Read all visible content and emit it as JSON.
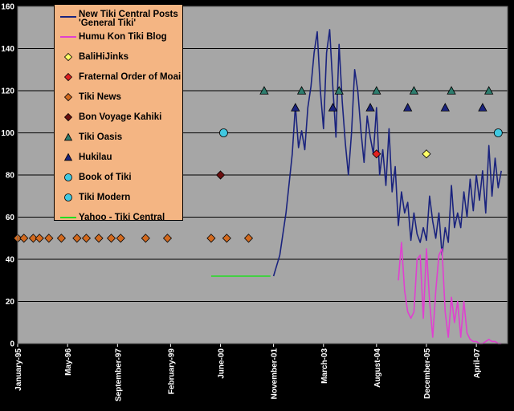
{
  "chart_data": {
    "type": "line",
    "title": "",
    "xlabel": "",
    "ylabel": "",
    "x_range": [
      "1995-01",
      "2008-02"
    ],
    "ylim": [
      0,
      160
    ],
    "yticks": [
      0,
      20,
      40,
      60,
      80,
      100,
      120,
      140,
      160
    ],
    "grid": true,
    "background": "#a6a6a6",
    "legend_position": "top-left",
    "xtick_labels": [
      {
        "date": "1995-01",
        "label": "January-95"
      },
      {
        "date": "1996-05",
        "label": "May-96"
      },
      {
        "date": "1997-09",
        "label": "September-97"
      },
      {
        "date": "1999-02",
        "label": "February-99"
      },
      {
        "date": "2000-06",
        "label": "June-00"
      },
      {
        "date": "2001-11",
        "label": "November-01"
      },
      {
        "date": "2003-03",
        "label": "March-03"
      },
      {
        "date": "2004-08",
        "label": "August-04"
      },
      {
        "date": "2005-12",
        "label": "December-05"
      },
      {
        "date": "2007-04",
        "label": "April-07"
      }
    ],
    "series": [
      {
        "name": "New Tiki Central Posts 'General Tiki'",
        "kind": "line",
        "color": "#1a237e",
        "points": [
          [
            "2001-11",
            32
          ],
          [
            "2002-01",
            42
          ],
          [
            "2002-03",
            62
          ],
          [
            "2002-05",
            90
          ],
          [
            "2002-06",
            113
          ],
          [
            "2002-07",
            93
          ],
          [
            "2002-08",
            101
          ],
          [
            "2002-09",
            92
          ],
          [
            "2002-10",
            112
          ],
          [
            "2002-11",
            122
          ],
          [
            "2002-12",
            138
          ],
          [
            "2003-01",
            148
          ],
          [
            "2003-02",
            120
          ],
          [
            "2003-03",
            102
          ],
          [
            "2003-04",
            138
          ],
          [
            "2003-05",
            149
          ],
          [
            "2003-06",
            122
          ],
          [
            "2003-07",
            98
          ],
          [
            "2003-08",
            142
          ],
          [
            "2003-09",
            115
          ],
          [
            "2003-10",
            95
          ],
          [
            "2003-11",
            80
          ],
          [
            "2003-12",
            100
          ],
          [
            "2004-01",
            130
          ],
          [
            "2004-02",
            120
          ],
          [
            "2004-03",
            101
          ],
          [
            "2004-04",
            86
          ],
          [
            "2004-05",
            108
          ],
          [
            "2004-06",
            98
          ],
          [
            "2004-07",
            90
          ],
          [
            "2004-08",
            112
          ],
          [
            "2004-09",
            80
          ],
          [
            "2004-10",
            92
          ],
          [
            "2004-11",
            75
          ],
          [
            "2004-12",
            102
          ],
          [
            "2005-01",
            72
          ],
          [
            "2005-02",
            84
          ],
          [
            "2005-03",
            56
          ],
          [
            "2005-04",
            72
          ],
          [
            "2005-05",
            62
          ],
          [
            "2005-06",
            67
          ],
          [
            "2005-07",
            49
          ],
          [
            "2005-08",
            62
          ],
          [
            "2005-09",
            52
          ],
          [
            "2005-10",
            48
          ],
          [
            "2005-11",
            55
          ],
          [
            "2005-12",
            49
          ],
          [
            "2006-01",
            70
          ],
          [
            "2006-02",
            58
          ],
          [
            "2006-03",
            50
          ],
          [
            "2006-04",
            62
          ],
          [
            "2006-05",
            42
          ],
          [
            "2006-06",
            55
          ],
          [
            "2006-07",
            48
          ],
          [
            "2006-08",
            75
          ],
          [
            "2006-09",
            55
          ],
          [
            "2006-10",
            62
          ],
          [
            "2006-11",
            55
          ],
          [
            "2006-12",
            72
          ],
          [
            "2007-01",
            60
          ],
          [
            "2007-02",
            78
          ],
          [
            "2007-03",
            63
          ],
          [
            "2007-04",
            80
          ],
          [
            "2007-05",
            68
          ],
          [
            "2007-06",
            82
          ],
          [
            "2007-07",
            62
          ],
          [
            "2007-08",
            94
          ],
          [
            "2007-09",
            70
          ],
          [
            "2007-10",
            88
          ],
          [
            "2007-11",
            74
          ],
          [
            "2007-12",
            82
          ]
        ]
      },
      {
        "name": "Humu Kon Tiki Blog",
        "kind": "line",
        "color": "#e040d0",
        "points": [
          [
            "2005-03",
            30
          ],
          [
            "2005-04",
            48
          ],
          [
            "2005-05",
            25
          ],
          [
            "2005-06",
            15
          ],
          [
            "2005-07",
            12
          ],
          [
            "2005-08",
            15
          ],
          [
            "2005-09",
            40
          ],
          [
            "2005-10",
            42
          ],
          [
            "2005-11",
            12
          ],
          [
            "2005-12",
            45
          ],
          [
            "2006-01",
            20
          ],
          [
            "2006-02",
            3
          ],
          [
            "2006-03",
            25
          ],
          [
            "2006-04",
            42
          ],
          [
            "2006-05",
            45
          ],
          [
            "2006-06",
            15
          ],
          [
            "2006-07",
            3
          ],
          [
            "2006-08",
            22
          ],
          [
            "2006-09",
            10
          ],
          [
            "2006-10",
            20
          ],
          [
            "2006-11",
            3
          ],
          [
            "2006-12",
            20
          ],
          [
            "2007-01",
            5
          ],
          [
            "2007-02",
            2
          ],
          [
            "2007-03",
            1
          ],
          [
            "2007-04",
            1
          ],
          [
            "2007-05",
            0
          ],
          [
            "2007-06",
            0
          ],
          [
            "2007-07",
            1
          ],
          [
            "2007-08",
            2
          ],
          [
            "2007-09",
            1
          ],
          [
            "2007-10",
            1
          ],
          [
            "2007-11",
            0
          ],
          [
            "2007-12",
            0
          ]
        ]
      },
      {
        "name": "BaliHiJinks",
        "kind": "marker",
        "marker": "diamond",
        "color": "#ffff66",
        "points": [
          [
            "2005-12",
            90
          ]
        ]
      },
      {
        "name": "Fraternal Order of Moai",
        "kind": "marker",
        "marker": "diamond",
        "color": "#e02020",
        "points": [
          [
            "2004-08",
            90
          ]
        ]
      },
      {
        "name": "Tiki News",
        "kind": "marker",
        "marker": "diamond",
        "color": "#d2691e",
        "points": [
          [
            "1995-01",
            50
          ],
          [
            "1995-03",
            50
          ],
          [
            "1995-06",
            50
          ],
          [
            "1995-08",
            50
          ],
          [
            "1995-11",
            50
          ],
          [
            "1996-03",
            50
          ],
          [
            "1996-08",
            50
          ],
          [
            "1996-11",
            50
          ],
          [
            "1997-03",
            50
          ],
          [
            "1997-07",
            50
          ],
          [
            "1997-10",
            50
          ],
          [
            "1998-06",
            50
          ],
          [
            "1999-01",
            50
          ],
          [
            "2000-03",
            50
          ],
          [
            "2000-08",
            50
          ],
          [
            "2001-03",
            50
          ]
        ]
      },
      {
        "name": "Bon Voyage Kahiki",
        "kind": "marker",
        "marker": "diamond",
        "color": "#6b0f0f",
        "points": [
          [
            "2000-06",
            80
          ]
        ]
      },
      {
        "name": "Tiki Oasis",
        "kind": "marker",
        "marker": "triangle",
        "color": "#2e7d6e",
        "points": [
          [
            "2001-08",
            120
          ],
          [
            "2002-08",
            120
          ],
          [
            "2003-08",
            120
          ],
          [
            "2004-08",
            120
          ],
          [
            "2005-08",
            120
          ],
          [
            "2006-08",
            120
          ],
          [
            "2007-08",
            120
          ]
        ]
      },
      {
        "name": "Hukilau",
        "kind": "marker",
        "marker": "triangle",
        "color": "#1a237e",
        "points": [
          [
            "2002-06",
            112
          ],
          [
            "2003-06",
            112
          ],
          [
            "2004-06",
            112
          ],
          [
            "2005-06",
            112
          ],
          [
            "2006-06",
            112
          ],
          [
            "2007-06",
            112
          ]
        ]
      },
      {
        "name": "Book of Tiki",
        "kind": "marker",
        "marker": "circle",
        "color": "#40c8e0",
        "points": [
          [
            "2000-07",
            100
          ]
        ]
      },
      {
        "name": "Tiki Modern",
        "kind": "marker",
        "marker": "circle",
        "color": "#40c8e0",
        "points": [
          [
            "2007-11",
            100
          ]
        ]
      },
      {
        "name": "Yahoo - Tiki Central",
        "kind": "line",
        "color": "#22dd22",
        "points": [
          [
            "2000-03",
            32
          ],
          [
            "2001-10",
            32
          ]
        ]
      }
    ]
  },
  "legend": {
    "items": [
      {
        "label": "New Tiki Central Posts 'General Tiki'",
        "sym": "line",
        "color": "#1a237e"
      },
      {
        "label": "Humu Kon Tiki Blog",
        "sym": "line",
        "color": "#e040d0"
      },
      {
        "label": "BaliHiJinks",
        "sym": "diamond",
        "color": "#ffff66"
      },
      {
        "label": "Fraternal Order of Moai",
        "sym": "diamond",
        "color": "#e02020"
      },
      {
        "label": "Tiki News",
        "sym": "diamond",
        "color": "#d2691e"
      },
      {
        "label": "Bon Voyage Kahiki",
        "sym": "diamond",
        "color": "#6b0f0f"
      },
      {
        "label": "Tiki Oasis",
        "sym": "triangle",
        "color": "#2e7d6e"
      },
      {
        "label": "Hukilau",
        "sym": "triangle",
        "color": "#1a237e"
      },
      {
        "label": "Book of Tiki",
        "sym": "circle",
        "color": "#40c8e0"
      },
      {
        "label": "Tiki Modern",
        "sym": "circle",
        "color": "#40c8e0"
      },
      {
        "label": "Yahoo - Tiki Central",
        "sym": "line",
        "color": "#22dd22"
      }
    ]
  }
}
